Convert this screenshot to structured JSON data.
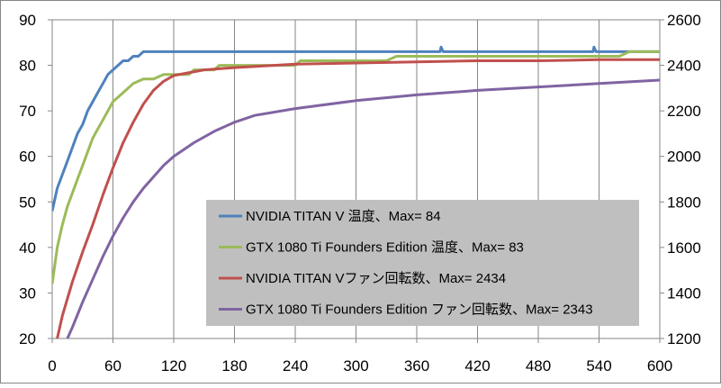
{
  "chart_data": {
    "type": "line",
    "xlim": [
      0,
      600
    ],
    "x_ticks": [
      "0",
      "60",
      "120",
      "180",
      "240",
      "300",
      "360",
      "420",
      "480",
      "540",
      "600"
    ],
    "y_left": {
      "lim": [
        20,
        90
      ],
      "ticks": [
        "20",
        "30",
        "40",
        "50",
        "60",
        "70",
        "80",
        "90"
      ]
    },
    "y_right": {
      "lim": [
        1200,
        2600
      ],
      "ticks": [
        "1200",
        "1400",
        "1600",
        "1800",
        "2000",
        "2200",
        "2400",
        "2600"
      ]
    },
    "grid": "vertical",
    "legend_position": "lower-right",
    "series": [
      {
        "name": "NVIDIA TITAN V 温度、Max= 84",
        "axis": "left",
        "color": "#4f81bd",
        "points": [
          [
            0,
            48
          ],
          [
            5,
            53
          ],
          [
            10,
            56
          ],
          [
            15,
            59
          ],
          [
            20,
            62
          ],
          [
            25,
            65
          ],
          [
            30,
            67
          ],
          [
            35,
            70
          ],
          [
            40,
            72
          ],
          [
            45,
            74
          ],
          [
            50,
            76
          ],
          [
            55,
            78
          ],
          [
            60,
            79
          ],
          [
            65,
            80
          ],
          [
            70,
            81
          ],
          [
            75,
            81
          ],
          [
            80,
            82
          ],
          [
            85,
            82
          ],
          [
            90,
            83
          ],
          [
            150,
            83
          ],
          [
            300,
            83
          ],
          [
            383,
            83
          ],
          [
            384,
            84
          ],
          [
            386,
            83
          ],
          [
            534,
            83
          ],
          [
            535,
            84
          ],
          [
            537,
            83
          ],
          [
            600,
            83
          ]
        ]
      },
      {
        "name": "GTX 1080 Ti Founders Edition 温度、Max= 83",
        "axis": "left",
        "color": "#9bbb59",
        "points": [
          [
            0,
            32
          ],
          [
            5,
            40
          ],
          [
            10,
            45
          ],
          [
            15,
            49
          ],
          [
            20,
            52
          ],
          [
            25,
            55
          ],
          [
            30,
            58
          ],
          [
            35,
            61
          ],
          [
            40,
            64
          ],
          [
            45,
            66
          ],
          [
            50,
            68
          ],
          [
            55,
            70
          ],
          [
            60,
            72
          ],
          [
            65,
            73
          ],
          [
            70,
            74
          ],
          [
            75,
            75
          ],
          [
            80,
            76
          ],
          [
            90,
            77
          ],
          [
            100,
            77
          ],
          [
            110,
            78
          ],
          [
            120,
            78
          ],
          [
            135,
            78
          ],
          [
            140,
            79
          ],
          [
            160,
            79
          ],
          [
            165,
            80
          ],
          [
            200,
            80
          ],
          [
            240,
            80
          ],
          [
            245,
            81
          ],
          [
            300,
            81
          ],
          [
            330,
            81
          ],
          [
            340,
            82
          ],
          [
            400,
            82
          ],
          [
            500,
            82
          ],
          [
            560,
            82
          ],
          [
            570,
            83
          ],
          [
            600,
            83
          ]
        ]
      },
      {
        "name": "NVIDIA TITAN Vファン回転数、Max= 2434",
        "axis": "right",
        "color": "#c0504d",
        "points": [
          [
            5,
            1200
          ],
          [
            10,
            1300
          ],
          [
            20,
            1450
          ],
          [
            30,
            1580
          ],
          [
            40,
            1700
          ],
          [
            50,
            1830
          ],
          [
            60,
            1950
          ],
          [
            70,
            2060
          ],
          [
            80,
            2150
          ],
          [
            90,
            2230
          ],
          [
            100,
            2290
          ],
          [
            110,
            2330
          ],
          [
            120,
            2355
          ],
          [
            150,
            2380
          ],
          [
            180,
            2390
          ],
          [
            240,
            2405
          ],
          [
            300,
            2410
          ],
          [
            360,
            2415
          ],
          [
            420,
            2420
          ],
          [
            480,
            2420
          ],
          [
            540,
            2425
          ],
          [
            600,
            2425
          ]
        ]
      },
      {
        "name": "GTX 1080 Ti Founders Edition ファン回転数、Max= 2343",
        "axis": "right",
        "color": "#8064a2",
        "points": [
          [
            15,
            1200
          ],
          [
            20,
            1250
          ],
          [
            30,
            1360
          ],
          [
            40,
            1460
          ],
          [
            50,
            1560
          ],
          [
            60,
            1650
          ],
          [
            70,
            1730
          ],
          [
            80,
            1800
          ],
          [
            90,
            1860
          ],
          [
            100,
            1910
          ],
          [
            110,
            1960
          ],
          [
            120,
            2000
          ],
          [
            140,
            2060
          ],
          [
            160,
            2110
          ],
          [
            180,
            2150
          ],
          [
            200,
            2180
          ],
          [
            240,
            2210
          ],
          [
            300,
            2245
          ],
          [
            360,
            2270
          ],
          [
            420,
            2290
          ],
          [
            480,
            2305
          ],
          [
            540,
            2320
          ],
          [
            600,
            2335
          ]
        ]
      }
    ]
  }
}
